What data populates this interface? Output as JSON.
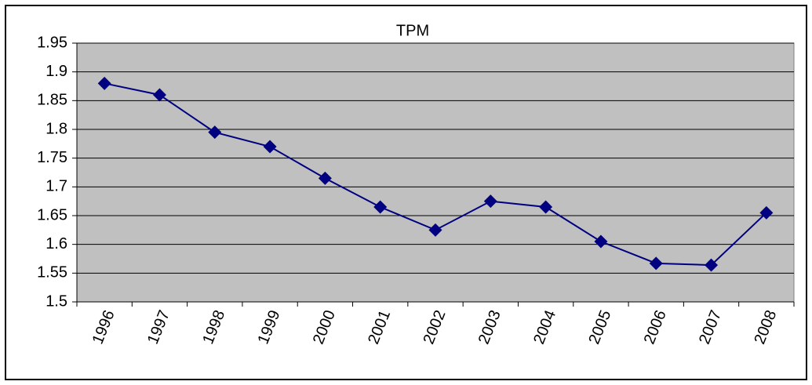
{
  "chart_data": {
    "type": "line",
    "title": "TPM",
    "categories": [
      "1996",
      "1997",
      "1998",
      "1999",
      "2000",
      "2001",
      "2002",
      "2003",
      "2004",
      "2005",
      "2006",
      "2007",
      "2008"
    ],
    "series": [
      {
        "name": "TPM",
        "color": "#000080",
        "values": [
          1.88,
          1.86,
          1.795,
          1.77,
          1.715,
          1.665,
          1.625,
          1.675,
          1.665,
          1.605,
          1.567,
          1.564,
          1.655
        ]
      }
    ],
    "ylim": [
      1.5,
      1.95
    ],
    "yticks": [
      1.5,
      1.55,
      1.6,
      1.65,
      1.7,
      1.75,
      1.8,
      1.85,
      1.9,
      1.95
    ],
    "grid": true
  }
}
